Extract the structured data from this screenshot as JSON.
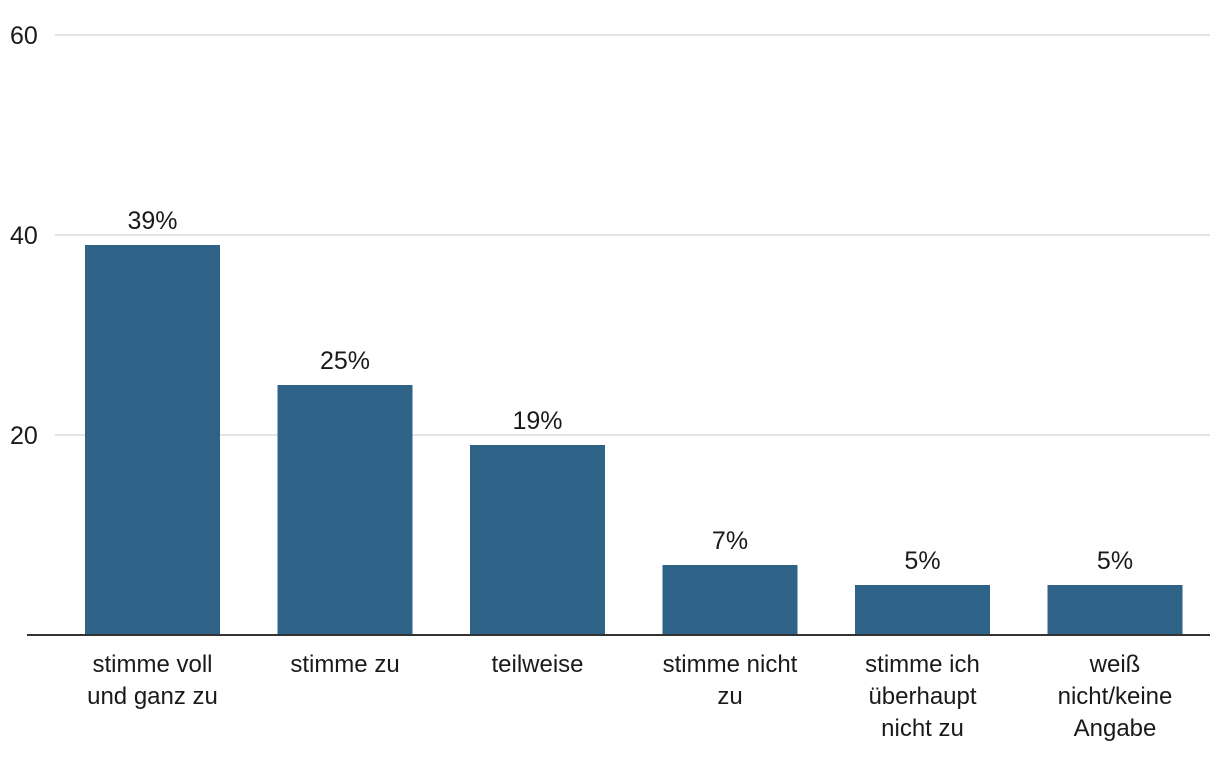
{
  "chart_data": {
    "type": "bar",
    "categories": [
      "stimme voll und ganz zu",
      "stimme zu",
      "teilweise",
      "stimme nicht zu",
      "stimme ich überhaupt nicht zu",
      "weiß nicht/keine Angabe"
    ],
    "category_label_lines": [
      [
        "stimme voll",
        "und ganz zu"
      ],
      [
        "stimme zu"
      ],
      [
        "teilweise"
      ],
      [
        "stimme nicht",
        "zu"
      ],
      [
        "stimme ich",
        "überhaupt",
        "nicht zu"
      ],
      [
        "weiß",
        "nicht/keine",
        "Angabe"
      ]
    ],
    "values": [
      39,
      25,
      19,
      7,
      5,
      5
    ],
    "data_labels": [
      "39%",
      "25%",
      "19%",
      "7%",
      "5%",
      "5%"
    ],
    "y_ticks": [
      20,
      40,
      60
    ],
    "ylim": [
      0,
      60
    ],
    "grid": true,
    "bar_color": "#2e6387"
  }
}
